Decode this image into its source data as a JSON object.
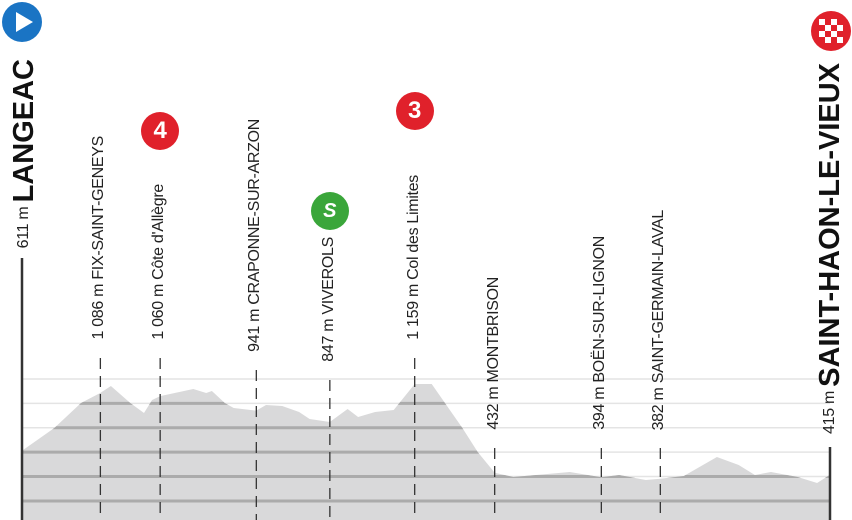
{
  "chart_data": {
    "type": "area",
    "title": "",
    "xlabel": "",
    "ylabel": "",
    "y_unit": "m",
    "grid": true,
    "grid_step_m": 200,
    "colors": {
      "area": "#d9d9da",
      "grid_inside": "#ababab",
      "grid_outside": "#e4e4e4",
      "axis": "#333333"
    },
    "profile": [
      [
        0,
        611
      ],
      [
        0.04,
        798
      ],
      [
        0.073,
        1003
      ],
      [
        0.097,
        1086
      ],
      [
        0.11,
        1143
      ],
      [
        0.134,
        1003
      ],
      [
        0.151,
        921
      ],
      [
        0.161,
        1028
      ],
      [
        0.171,
        1060
      ],
      [
        0.212,
        1118
      ],
      [
        0.228,
        1085
      ],
      [
        0.235,
        1102
      ],
      [
        0.251,
        1003
      ],
      [
        0.262,
        962
      ],
      [
        0.29,
        941
      ],
      [
        0.302,
        987
      ],
      [
        0.322,
        979
      ],
      [
        0.343,
        929
      ],
      [
        0.356,
        872
      ],
      [
        0.381,
        847
      ],
      [
        0.403,
        954
      ],
      [
        0.416,
        888
      ],
      [
        0.437,
        929
      ],
      [
        0.46,
        946
      ],
      [
        0.486,
        1159
      ],
      [
        0.507,
        1159
      ],
      [
        0.545,
        798
      ],
      [
        0.564,
        601
      ],
      [
        0.585,
        432
      ],
      [
        0.608,
        396
      ],
      [
        0.678,
        437
      ],
      [
        0.717,
        394
      ],
      [
        0.739,
        413
      ],
      [
        0.772,
        372
      ],
      [
        0.79,
        382
      ],
      [
        0.819,
        405
      ],
      [
        0.86,
        560
      ],
      [
        0.887,
        495
      ],
      [
        0.907,
        413
      ],
      [
        0.927,
        437
      ],
      [
        0.96,
        396
      ],
      [
        0.984,
        347
      ],
      [
        1,
        415
      ]
    ],
    "start": {
      "elevation": "611 m",
      "name": "LANGEAC",
      "icon": "start-play-icon",
      "color": "#1a74c4"
    },
    "finish": {
      "elevation": "415 m",
      "name": "SAINT-HAON-LE-VIEUX",
      "icon": "finish-checkered-icon",
      "color": "#e0212b"
    },
    "waypoints": [
      {
        "pos": 0.097,
        "label": "1 086 m FIX-SAINT-GENEYS"
      },
      {
        "pos": 0.171,
        "label": "1 060 m Côte d'Allègre",
        "badge": "4",
        "badge_type": "climb-category-icon",
        "badge_color": "#e0212b"
      },
      {
        "pos": 0.29,
        "label": "941 m CRAPONNE-SUR-ARZON"
      },
      {
        "pos": 0.381,
        "label": "847 m VIVEROLS",
        "badge": "S",
        "badge_type": "sprint-icon",
        "badge_color": "#3aa63a"
      },
      {
        "pos": 0.486,
        "label": "1 159 m Col des Limites",
        "badge": "3",
        "badge_type": "climb-category-icon",
        "badge_color": "#e0212b"
      },
      {
        "pos": 0.585,
        "label": "432 m MONTBRISON"
      },
      {
        "pos": 0.717,
        "label": "394 m BOËN-SUR-LIGNON"
      },
      {
        "pos": 0.79,
        "label": "382 m SAINT-GERMAIN-LAVAL"
      }
    ]
  }
}
